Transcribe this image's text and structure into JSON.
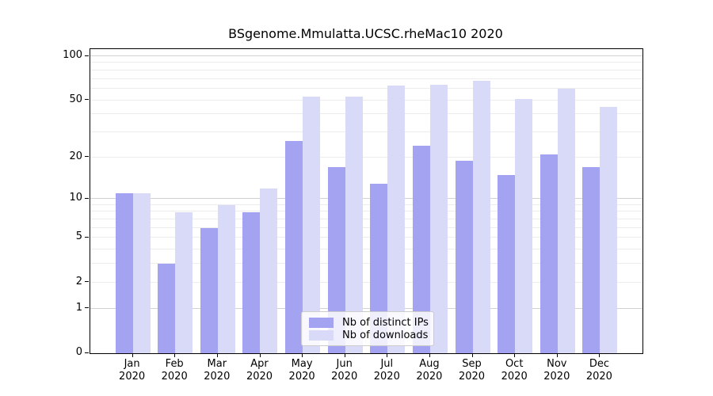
{
  "title": "BSgenome.Mmulatta.UCSC.rheMac10 2020",
  "chart_data": {
    "type": "bar",
    "title": "BSgenome.Mmulatta.UCSC.rheMac10 2020",
    "categories": [
      "Jan",
      "Feb",
      "Mar",
      "Apr",
      "May",
      "Jun",
      "Jul",
      "Aug",
      "Sep",
      "Oct",
      "Nov",
      "Dec"
    ],
    "x_tick_year": "2020",
    "series": [
      {
        "name": "Nb of distinct IPs",
        "color": "#a3a3f2",
        "values": [
          11,
          3,
          6,
          8,
          26,
          17,
          13,
          24,
          19,
          15,
          21,
          17
        ]
      },
      {
        "name": "Nb of downloads",
        "color": "#d9d9f8",
        "values": [
          11,
          8,
          9,
          12,
          53,
          53,
          63,
          64,
          68,
          51,
          60,
          45
        ]
      }
    ],
    "y_ticks": [
      0,
      1,
      2,
      5,
      10,
      20,
      50,
      100
    ],
    "y_scale": "log1p",
    "ylim": [
      0,
      112
    ],
    "xlabel": "",
    "ylabel": "",
    "grid": true,
    "legend_position": "lower-center-inside"
  }
}
